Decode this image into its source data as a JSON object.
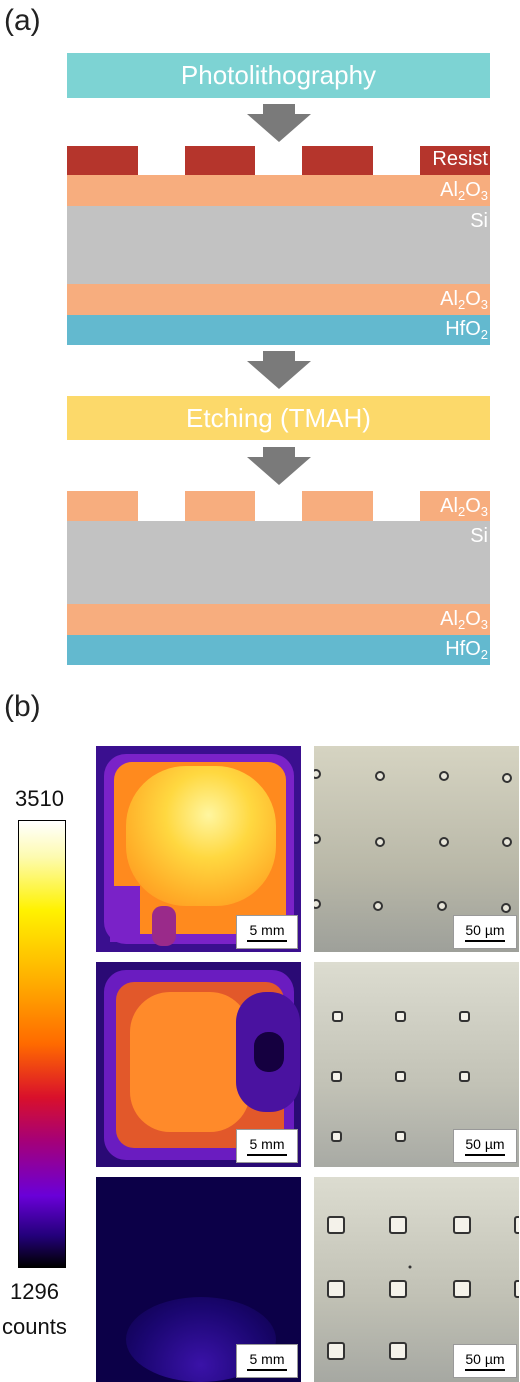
{
  "panels": {
    "a": "(a)",
    "b": "(b)"
  },
  "steps": {
    "photolithography": "Photolithography",
    "etching": "Etching (TMAH)"
  },
  "layers_top": {
    "resist": "Resist",
    "al2o3_top": {
      "base": "Al",
      "sub1": "2",
      "mid": "O",
      "sub2": "3"
    },
    "si": "Si",
    "al2o3_bottom": {
      "base": "Al",
      "sub1": "2",
      "mid": "O",
      "sub2": "3"
    },
    "hfo2": {
      "base": "HfO",
      "sub": "2"
    }
  },
  "layers_bottom": {
    "al2o3_top": {
      "base": "Al",
      "sub1": "2",
      "mid": "O",
      "sub2": "3"
    },
    "si": "Si",
    "al2o3_bottom": {
      "base": "Al",
      "sub1": "2",
      "mid": "O",
      "sub2": "3"
    },
    "hfo2": {
      "base": "HfO",
      "sub": "2"
    }
  },
  "colors": {
    "photolithography": "#7dd3d3",
    "etching": "#fcd96a",
    "resist": "#b5352c",
    "al2o3": "#f7ad7e",
    "si": "#c2c2c2",
    "hfo2": "#63b9cf",
    "arrow": "#7a7a7a"
  },
  "colorbar": {
    "max": "3510",
    "min": "1296",
    "unit": "counts"
  },
  "scalebars": {
    "luminescence": "5 mm",
    "micrograph": "50 µm"
  }
}
